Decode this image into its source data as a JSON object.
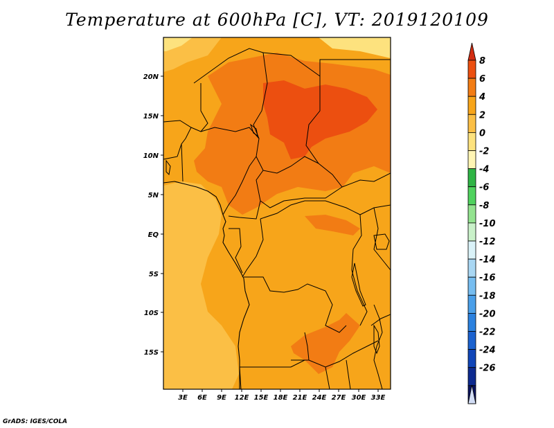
{
  "title": "Temperature at 600hPa [C], VT: 2019120109",
  "credit": "GrADS: IGES/COLA",
  "map": {
    "variable": "Temperature",
    "level": "600hPa",
    "units": "C",
    "valid_time": "2019120109",
    "lat_labels": [
      "20N",
      "15N",
      "10N",
      "5N",
      "EQ",
      "5S",
      "10S",
      "15S"
    ],
    "lon_labels": [
      "3E",
      "6E",
      "9E",
      "12E",
      "15E",
      "18E",
      "21E",
      "24E",
      "27E",
      "30E",
      "33E"
    ]
  },
  "colorbar": {
    "labels": [
      "8",
      "6",
      "4",
      "2",
      "0",
      "-2",
      "-4",
      "-6",
      "-8",
      "-10",
      "-12",
      "-14",
      "-16",
      "-18",
      "-20",
      "-22",
      "-24",
      "-26"
    ],
    "colors": [
      "#d22d12",
      "#ec4f10",
      "#f27c14",
      "#f7a51a",
      "#fbbf45",
      "#fde27e",
      "#fff5b4",
      "#2fb445",
      "#4fd25e",
      "#93e38f",
      "#c9f1c9",
      "#daf2f8",
      "#a9d7f3",
      "#76bdf0",
      "#4a9fe9",
      "#2b81df",
      "#1b62cf",
      "#1045b8",
      "#0d2a8f",
      "#0a1460",
      "#d2ddf5"
    ]
  }
}
